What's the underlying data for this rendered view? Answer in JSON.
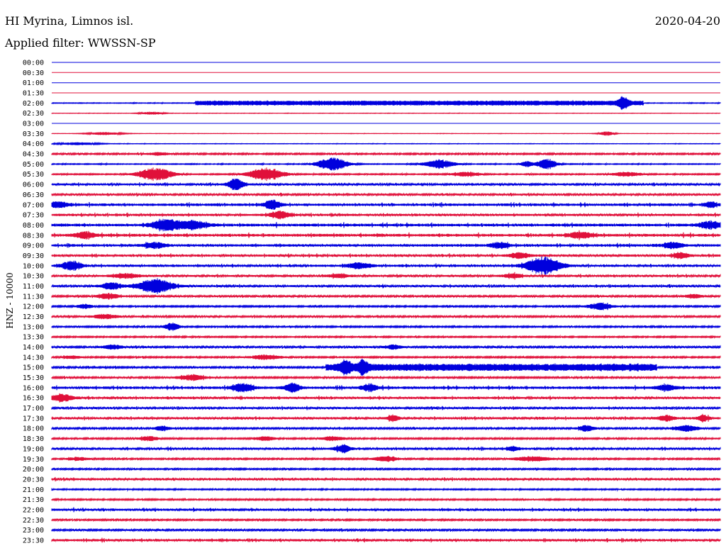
{
  "header": {
    "station": "HI Myrina, Limnos isl.",
    "date": "2020-04-20",
    "filter": "Applied filter: WWSSN-SP"
  },
  "colors": {
    "even_rows": "#0000dd",
    "odd_rows": "#e0103a",
    "text": "#000000",
    "background": "#ffffff"
  },
  "chart_data": {
    "type": "line",
    "title": "HI Myrina, Limnos isl.",
    "ylabel": "HNZ - 10000",
    "row_labels": [
      "00:00",
      "00:30",
      "01:00",
      "01:30",
      "02:00",
      "02:30",
      "03:00",
      "03:30",
      "04:00",
      "04:30",
      "05:00",
      "05:30",
      "06:00",
      "06:30",
      "07:00",
      "07:30",
      "08:00",
      "08:30",
      "09:00",
      "09:30",
      "10:00",
      "10:30",
      "11:00",
      "11:30",
      "12:00",
      "12:30",
      "13:00",
      "13:30",
      "14:00",
      "14:30",
      "15:00",
      "15:30",
      "16:00",
      "16:30",
      "17:00",
      "17:30",
      "18:00",
      "18:30",
      "19:00",
      "19:30",
      "20:00",
      "20:30",
      "21:00",
      "21:30",
      "22:00",
      "22:30",
      "23:00",
      "23:30"
    ],
    "row_color_pattern": [
      "blue",
      "red"
    ],
    "background_noise": [
      0.0,
      0.0,
      0.0,
      0.0,
      0.5,
      0.2,
      0.0,
      0.2,
      0.3,
      1.0,
      0.6,
      0.8,
      1.4,
      1.3,
      1.8,
      1.6,
      2.0,
      2.0,
      1.8,
      1.6,
      1.6,
      1.4,
      1.4,
      1.2,
      1.0,
      1.2,
      1.0,
      0.9,
      1.3,
      1.0,
      1.2,
      1.1,
      1.8,
      1.6,
      1.4,
      1.5,
      1.2,
      1.0,
      1.5,
      1.0,
      1.0,
      1.5,
      0.8,
      0.9,
      1.6,
      1.0,
      1.2,
      1.6
    ],
    "events": [
      {
        "row": 4,
        "start": 0.215,
        "end": 0.885,
        "amp": 3,
        "kind": "band"
      },
      {
        "row": 4,
        "center": 0.855,
        "width": 0.005,
        "amp": 8,
        "kind": "spike"
      },
      {
        "row": 5,
        "center": 0.15,
        "width": 0.012,
        "amp": 2,
        "kind": "burst"
      },
      {
        "row": 7,
        "center": 0.08,
        "width": 0.018,
        "amp": 2,
        "kind": "burst"
      },
      {
        "row": 7,
        "center": 0.83,
        "width": 0.008,
        "amp": 3,
        "kind": "burst"
      },
      {
        "row": 8,
        "center": 0.04,
        "width": 0.02,
        "amp": 2,
        "kind": "burst"
      },
      {
        "row": 9,
        "center": 0.16,
        "width": 0.012,
        "amp": 2,
        "kind": "burst"
      },
      {
        "row": 10,
        "center": 0.42,
        "width": 0.016,
        "amp": 9,
        "kind": "burst"
      },
      {
        "row": 10,
        "center": 0.58,
        "width": 0.016,
        "amp": 6,
        "kind": "burst"
      },
      {
        "row": 10,
        "center": 0.74,
        "width": 0.01,
        "amp": 8,
        "kind": "burst"
      },
      {
        "row": 10,
        "center": 0.71,
        "width": 0.006,
        "amp": 4,
        "kind": "burst"
      },
      {
        "row": 11,
        "center": 0.155,
        "width": 0.018,
        "amp": 9,
        "kind": "burst"
      },
      {
        "row": 11,
        "center": 0.32,
        "width": 0.018,
        "amp": 9,
        "kind": "burst"
      },
      {
        "row": 11,
        "center": 0.62,
        "width": 0.015,
        "amp": 3,
        "kind": "burst"
      },
      {
        "row": 11,
        "center": 0.86,
        "width": 0.015,
        "amp": 3,
        "kind": "burst"
      },
      {
        "row": 12,
        "center": 0.275,
        "width": 0.008,
        "amp": 8,
        "kind": "burst"
      },
      {
        "row": 14,
        "center": 0.33,
        "width": 0.008,
        "amp": 7,
        "kind": "burst"
      },
      {
        "row": 14,
        "center": 0.01,
        "width": 0.01,
        "amp": 4,
        "kind": "burst"
      },
      {
        "row": 14,
        "center": 0.985,
        "width": 0.006,
        "amp": 4,
        "kind": "burst"
      },
      {
        "row": 15,
        "center": 0.34,
        "width": 0.01,
        "amp": 5,
        "kind": "burst"
      },
      {
        "row": 16,
        "center": 0.17,
        "width": 0.014,
        "amp": 8,
        "kind": "burst"
      },
      {
        "row": 16,
        "center": 0.21,
        "width": 0.014,
        "amp": 6,
        "kind": "burst"
      },
      {
        "row": 16,
        "center": 0.985,
        "width": 0.012,
        "amp": 5,
        "kind": "burst"
      },
      {
        "row": 17,
        "center": 0.05,
        "width": 0.012,
        "amp": 4,
        "kind": "burst"
      },
      {
        "row": 17,
        "center": 0.79,
        "width": 0.012,
        "amp": 4,
        "kind": "burst"
      },
      {
        "row": 18,
        "center": 0.155,
        "width": 0.01,
        "amp": 4,
        "kind": "burst"
      },
      {
        "row": 18,
        "center": 0.67,
        "width": 0.01,
        "amp": 4,
        "kind": "burst"
      },
      {
        "row": 18,
        "center": 0.93,
        "width": 0.01,
        "amp": 4,
        "kind": "burst"
      },
      {
        "row": 19,
        "center": 0.7,
        "width": 0.01,
        "amp": 4,
        "kind": "burst"
      },
      {
        "row": 19,
        "center": 0.94,
        "width": 0.008,
        "amp": 4,
        "kind": "burst"
      },
      {
        "row": 20,
        "center": 0.03,
        "width": 0.01,
        "amp": 7,
        "kind": "burst"
      },
      {
        "row": 20,
        "center": 0.735,
        "width": 0.018,
        "amp": 12,
        "kind": "burst"
      },
      {
        "row": 20,
        "center": 0.46,
        "width": 0.012,
        "amp": 4,
        "kind": "burst"
      },
      {
        "row": 21,
        "center": 0.11,
        "width": 0.014,
        "amp": 3,
        "kind": "burst"
      },
      {
        "row": 21,
        "center": 0.43,
        "width": 0.01,
        "amp": 3,
        "kind": "burst"
      },
      {
        "row": 21,
        "center": 0.69,
        "width": 0.01,
        "amp": 3,
        "kind": "burst"
      },
      {
        "row": 22,
        "center": 0.155,
        "width": 0.018,
        "amp": 10,
        "kind": "burst"
      },
      {
        "row": 22,
        "center": 0.09,
        "width": 0.01,
        "amp": 5,
        "kind": "burst"
      },
      {
        "row": 23,
        "center": 0.085,
        "width": 0.01,
        "amp": 4,
        "kind": "burst"
      },
      {
        "row": 23,
        "center": 0.96,
        "width": 0.008,
        "amp": 3,
        "kind": "burst"
      },
      {
        "row": 24,
        "center": 0.82,
        "width": 0.012,
        "amp": 5,
        "kind": "burst"
      },
      {
        "row": 24,
        "center": 0.05,
        "width": 0.008,
        "amp": 3,
        "kind": "burst"
      },
      {
        "row": 25,
        "center": 0.08,
        "width": 0.012,
        "amp": 3,
        "kind": "burst"
      },
      {
        "row": 26,
        "center": 0.18,
        "width": 0.008,
        "amp": 5,
        "kind": "burst"
      },
      {
        "row": 28,
        "center": 0.09,
        "width": 0.01,
        "amp": 3,
        "kind": "burst"
      },
      {
        "row": 28,
        "center": 0.51,
        "width": 0.008,
        "amp": 3,
        "kind": "burst"
      },
      {
        "row": 29,
        "center": 0.03,
        "width": 0.01,
        "amp": 2,
        "kind": "burst"
      },
      {
        "row": 29,
        "center": 0.32,
        "width": 0.016,
        "amp": 3,
        "kind": "burst"
      },
      {
        "row": 30,
        "start": 0.41,
        "end": 0.905,
        "amp": 4,
        "kind": "band"
      },
      {
        "row": 30,
        "center": 0.44,
        "width": 0.005,
        "amp": 9,
        "kind": "spike"
      },
      {
        "row": 30,
        "center": 0.465,
        "width": 0.005,
        "amp": 9,
        "kind": "spike"
      },
      {
        "row": 31,
        "center": 0.21,
        "width": 0.014,
        "amp": 4,
        "kind": "burst"
      },
      {
        "row": 32,
        "center": 0.285,
        "width": 0.01,
        "amp": 6,
        "kind": "burst"
      },
      {
        "row": 32,
        "center": 0.36,
        "width": 0.008,
        "amp": 6,
        "kind": "burst"
      },
      {
        "row": 32,
        "center": 0.475,
        "width": 0.008,
        "amp": 5,
        "kind": "burst"
      },
      {
        "row": 32,
        "center": 0.92,
        "width": 0.01,
        "amp": 4,
        "kind": "burst"
      },
      {
        "row": 33,
        "center": 0.015,
        "width": 0.012,
        "amp": 5,
        "kind": "burst"
      },
      {
        "row": 35,
        "center": 0.51,
        "width": 0.006,
        "amp": 4,
        "kind": "burst"
      },
      {
        "row": 35,
        "center": 0.92,
        "width": 0.008,
        "amp": 4,
        "kind": "burst"
      },
      {
        "row": 35,
        "center": 0.975,
        "width": 0.006,
        "amp": 4,
        "kind": "burst"
      },
      {
        "row": 36,
        "center": 0.165,
        "width": 0.008,
        "amp": 3,
        "kind": "burst"
      },
      {
        "row": 36,
        "center": 0.8,
        "width": 0.008,
        "amp": 4,
        "kind": "burst"
      },
      {
        "row": 36,
        "center": 0.95,
        "width": 0.012,
        "amp": 4,
        "kind": "burst"
      },
      {
        "row": 37,
        "center": 0.145,
        "width": 0.01,
        "amp": 3,
        "kind": "burst"
      },
      {
        "row": 37,
        "center": 0.32,
        "width": 0.01,
        "amp": 3,
        "kind": "burst"
      },
      {
        "row": 37,
        "center": 0.42,
        "width": 0.012,
        "amp": 3,
        "kind": "burst"
      },
      {
        "row": 38,
        "center": 0.435,
        "width": 0.008,
        "amp": 5,
        "kind": "burst"
      },
      {
        "row": 38,
        "center": 0.69,
        "width": 0.006,
        "amp": 3,
        "kind": "burst"
      },
      {
        "row": 39,
        "center": 0.04,
        "width": 0.01,
        "amp": 2,
        "kind": "burst"
      },
      {
        "row": 39,
        "center": 0.5,
        "width": 0.014,
        "amp": 3,
        "kind": "burst"
      },
      {
        "row": 39,
        "center": 0.72,
        "width": 0.02,
        "amp": 3,
        "kind": "burst"
      }
    ]
  }
}
